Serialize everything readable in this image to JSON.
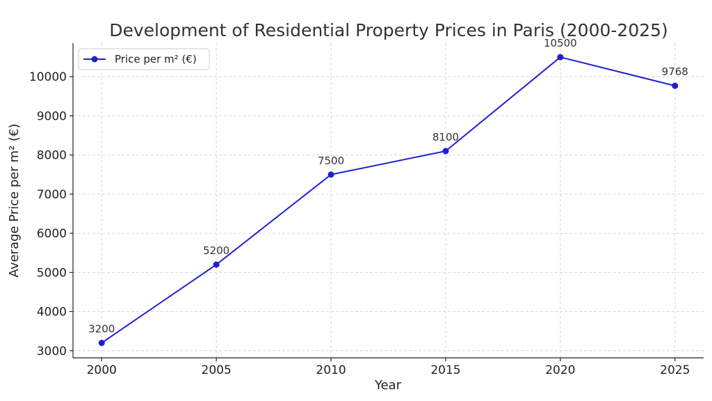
{
  "chart_data": {
    "type": "line",
    "title": "Development of Residential Property Prices in Paris (2000-2025)",
    "xlabel": "Year",
    "ylabel": "Average Price per m² (€)",
    "x": [
      2000,
      2005,
      2010,
      2015,
      2020,
      2025
    ],
    "x_ticks": [
      "2000",
      "2005",
      "2010",
      "2015",
      "2020",
      "2025"
    ],
    "y_ticks": [
      "3000",
      "4000",
      "5000",
      "6000",
      "7000",
      "8000",
      "9000",
      "10000"
    ],
    "y_tick_values": [
      3000,
      4000,
      5000,
      6000,
      7000,
      8000,
      9000,
      10000
    ],
    "xlim": [
      1998.75,
      2026.25
    ],
    "ylim": [
      2818,
      10857
    ],
    "grid": true,
    "legend_position": "top-left",
    "series": [
      {
        "name": "Price per m² (€)",
        "color": "#1f1fd1",
        "marker": "circle",
        "values": [
          3200,
          5200,
          7500,
          8100,
          10500,
          9768
        ],
        "data_labels": [
          "3200",
          "5200",
          "7500",
          "8100",
          "10500",
          "9768"
        ]
      }
    ]
  }
}
